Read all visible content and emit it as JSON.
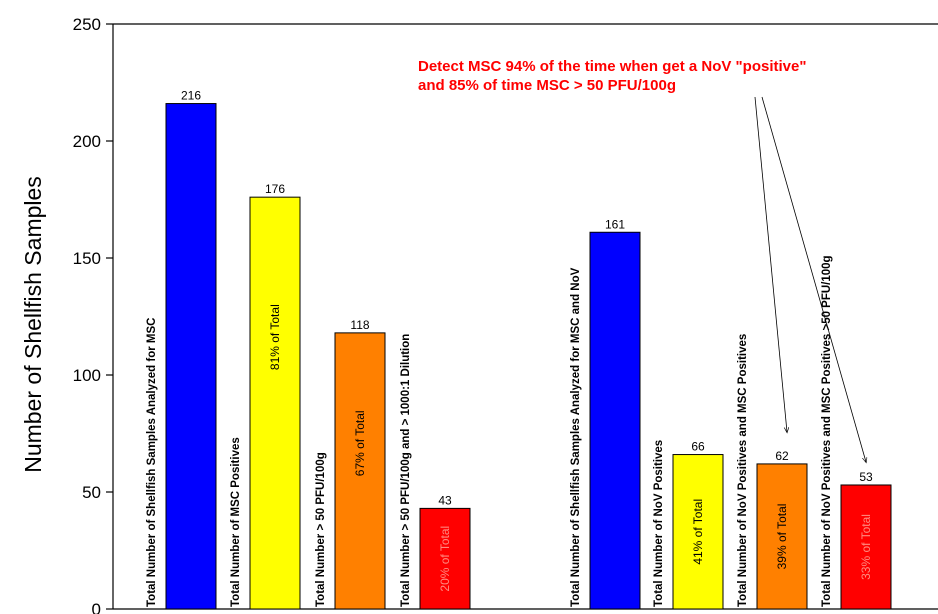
{
  "chart_data": {
    "type": "bar",
    "title": "",
    "xlabel": "",
    "ylabel": "Number of Shellfish Samples",
    "ylim": [
      0,
      250
    ],
    "yticks": [
      0,
      50,
      100,
      150,
      200,
      250
    ],
    "grid": false,
    "bars": [
      {
        "label": "Total Number of Shellfish Samples Analyzed for MSC",
        "value": 216,
        "value_label": "216",
        "percent_label": "",
        "color": "#0000ff",
        "group": 1
      },
      {
        "label": "Total Number of MSC Positives",
        "value": 176,
        "value_label": "176",
        "percent_label": "81% of Total",
        "color": "#ffff00",
        "group": 1
      },
      {
        "label": "Total Number > 50 PFU/100g",
        "value": 118,
        "value_label": "118",
        "percent_label": "67% of Total",
        "color": "#ff8000",
        "group": 1
      },
      {
        "label": "Total Number > 50 PFU/100g and > 1000:1 Dilution",
        "value": 43,
        "value_label": "43",
        "percent_label": "20% of Total",
        "color": "#ff0000",
        "group": 1
      },
      {
        "label": "Total Number of Shellfish Samples Analyzed for MSC and NoV",
        "value": 161,
        "value_label": "161",
        "percent_label": "",
        "color": "#0000ff",
        "group": 2
      },
      {
        "label": "Total Number of NoV Positives",
        "value": 66,
        "value_label": "66",
        "percent_label": "41% of Total",
        "color": "#ffff00",
        "group": 2
      },
      {
        "label": "Total Number of NoV Positives and MSC Positives",
        "value": 62,
        "value_label": "62",
        "percent_label": "39% of Total",
        "color": "#ff8000",
        "group": 2
      },
      {
        "label": "Total Number of NoV Positives and MSC Positives >50 PFU/100g",
        "value": 53,
        "value_label": "53",
        "percent_label": "33% of Total",
        "color": "#ff0000",
        "group": 2
      }
    ],
    "annotation": {
      "lines": [
        "Detect MSC 94% of the time when get a NoV \"positive\"",
        "and 85% of time MSC > 50 PFU/100g"
      ],
      "color": "#ff0000",
      "points_to": [
        "Total Number of NoV Positives and MSC Positives",
        "Total Number of NoV Positives and MSC Positives >50 PFU/100g"
      ]
    }
  }
}
